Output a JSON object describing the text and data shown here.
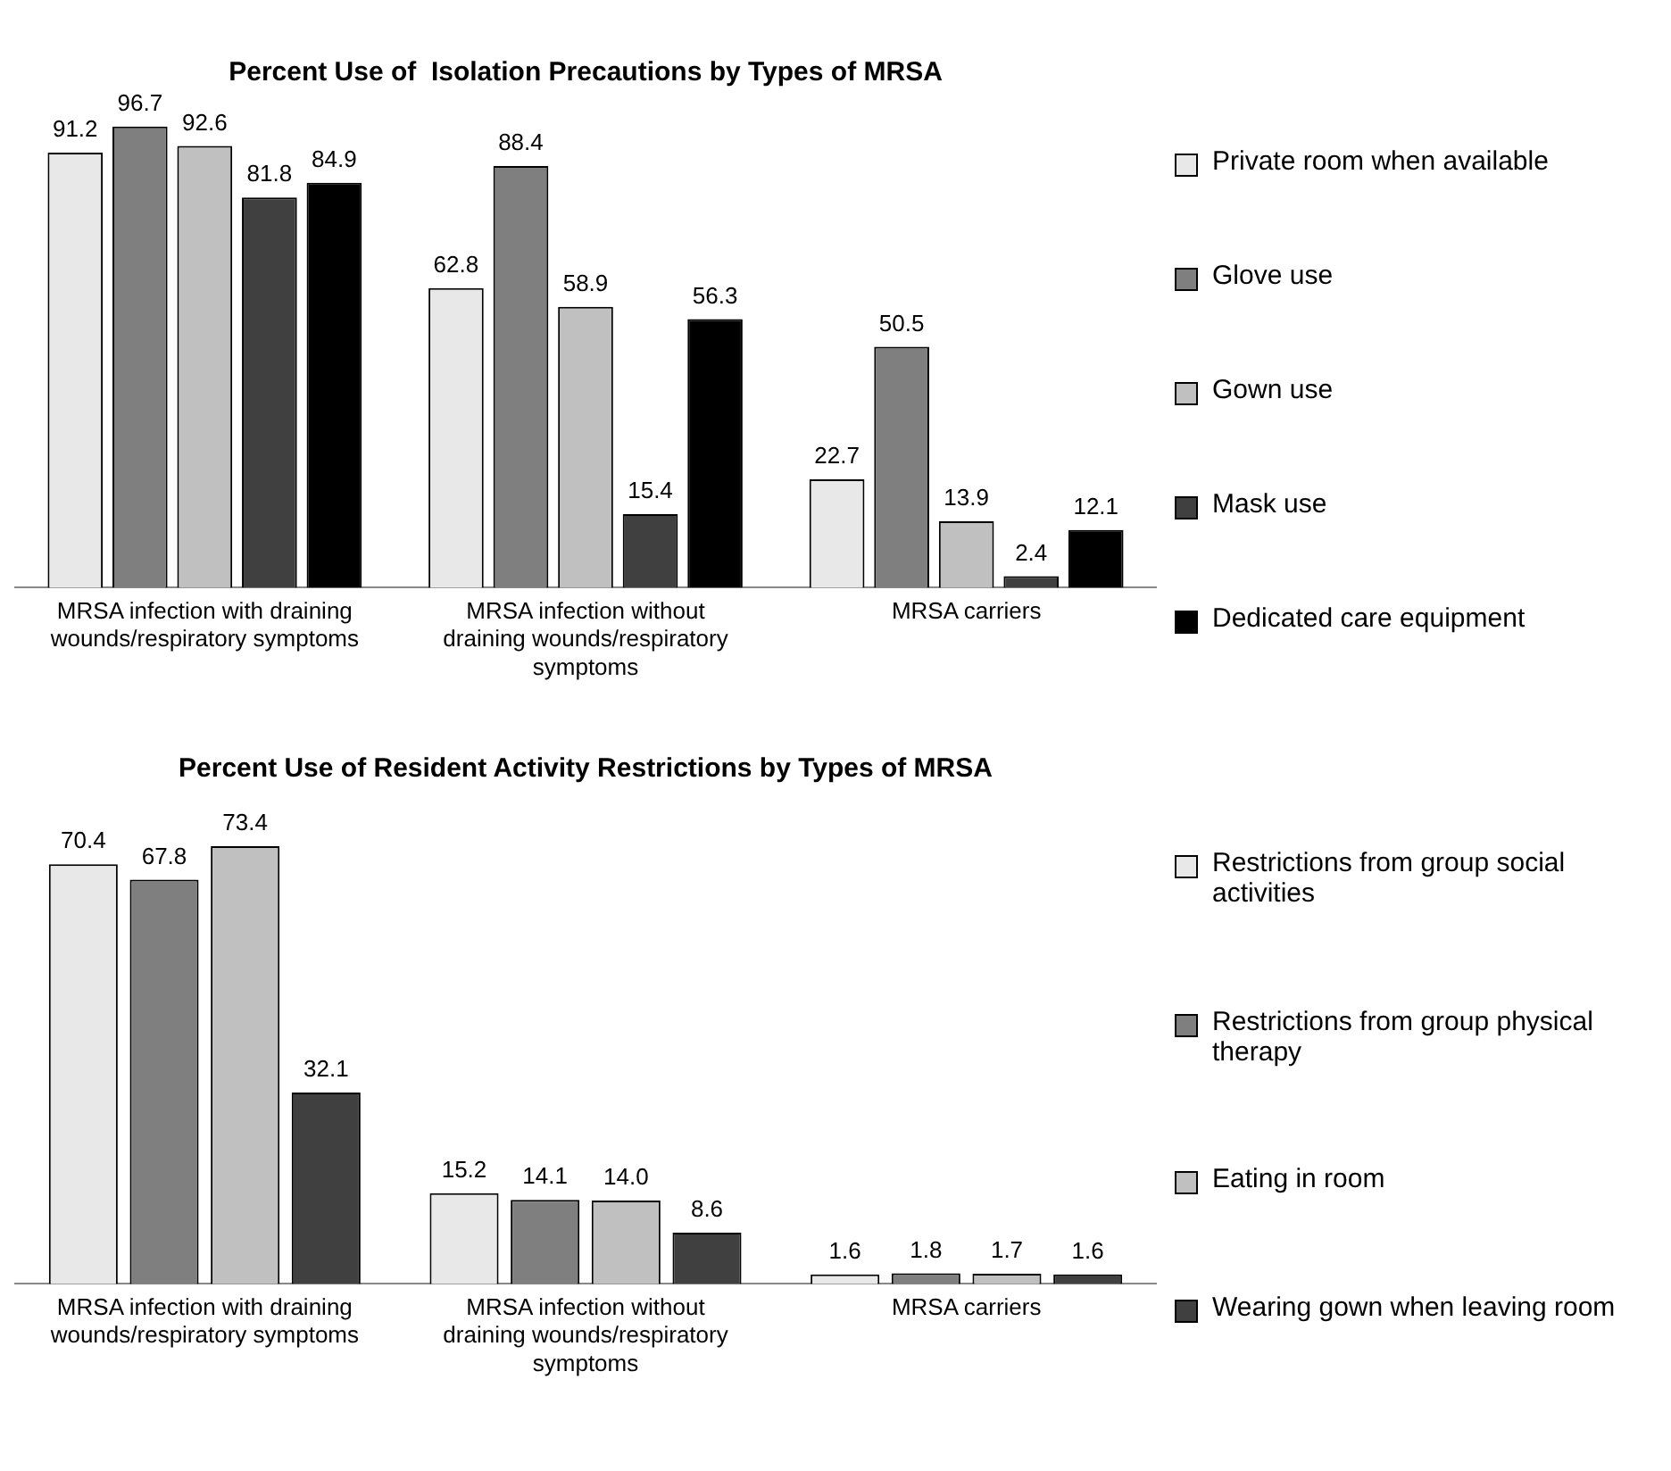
{
  "chart_data": [
    {
      "type": "bar",
      "title": "Percent Use of  Isolation Precautions by Types of MRSA",
      "categories": [
        "MRSA infection with draining wounds/respiratory symptoms",
        "MRSA infection without draining wounds/respiratory symptoms",
        "MRSA carriers"
      ],
      "series": [
        {
          "name": "Private room when available",
          "color": "#e8e8e8",
          "values": [
            91.2,
            62.8,
            22.7
          ],
          "value_labels": [
            "91.2",
            "62.8",
            "22.7"
          ]
        },
        {
          "name": "Glove use",
          "color": "#7f7f7f",
          "values": [
            96.7,
            88.4,
            50.5
          ],
          "value_labels": [
            "96.7",
            "88.4",
            "50.5"
          ]
        },
        {
          "name": "Gown use",
          "color": "#c0c0c0",
          "values": [
            92.6,
            58.9,
            13.9
          ],
          "value_labels": [
            "92.6",
            "58.9",
            "13.9"
          ]
        },
        {
          "name": "Mask use",
          "color": "#404040",
          "values": [
            81.8,
            15.4,
            2.4
          ],
          "value_labels": [
            "81.8",
            "15.4",
            "2.4"
          ]
        },
        {
          "name": "Dedicated care equipment",
          "color": "#000000",
          "values": [
            84.9,
            56.3,
            12.1
          ],
          "value_labels": [
            "84.9",
            "56.3",
            "12.1"
          ]
        }
      ],
      "legend": "right",
      "grid": false
    },
    {
      "type": "bar",
      "title": "Percent Use of Resident Activity Restrictions by Types of MRSA",
      "categories": [
        "MRSA infection with draining wounds/respiratory symptoms",
        "MRSA infection without draining wounds/respiratory symptoms",
        "MRSA carriers"
      ],
      "series": [
        {
          "name": "Restrictions from group social activities",
          "color": "#e8e8e8",
          "values": [
            70.4,
            15.2,
            1.6
          ],
          "value_labels": [
            "70.4",
            "15.2",
            "1.6"
          ]
        },
        {
          "name": "Restrictions from group physical therapy",
          "color": "#7f7f7f",
          "values": [
            67.8,
            14.1,
            1.8
          ],
          "value_labels": [
            "67.8",
            "14.1",
            "1.8"
          ]
        },
        {
          "name": "Eating in room",
          "color": "#c0c0c0",
          "values": [
            73.4,
            14,
            1.7
          ],
          "value_labels": [
            "73.4",
            "14.0",
            "1.7"
          ]
        },
        {
          "name": "Wearing gown when leaving room",
          "color": "#404040",
          "values": [
            32.1,
            8.6,
            1.6
          ],
          "value_labels": [
            "32.1",
            "8.6",
            "1.6"
          ]
        }
      ],
      "legend": "right",
      "grid": false
    }
  ]
}
